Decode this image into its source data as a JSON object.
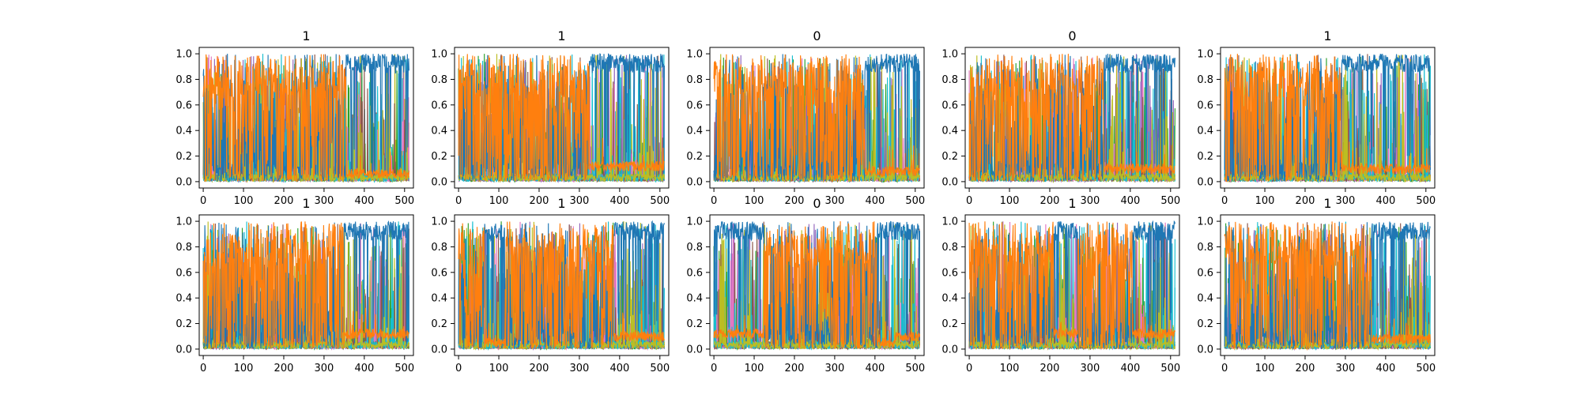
{
  "colors": {
    "primary": "#1f77b4",
    "secondary": "#ff7f0e",
    "accents": [
      "#17becf",
      "#bcbd22",
      "#2ca02c",
      "#9467bd",
      "#e377c2",
      "#8c564b"
    ]
  },
  "chart_data": [
    {
      "type": "line",
      "title": "1",
      "xlim": [
        -10,
        522
      ],
      "ylim": [
        -0.05,
        1.05
      ],
      "xticks": [
        0,
        100,
        200,
        300,
        400,
        500
      ],
      "yticks": [
        0.0,
        0.2,
        0.4,
        0.6,
        0.8,
        1.0
      ],
      "grid": false,
      "series_count": 10,
      "regime_segments": [
        {
          "x_start": 0,
          "x_end": 355,
          "dominant": "secondary",
          "low_level": 0.0
        },
        {
          "x_start": 355,
          "x_end": 511,
          "dominant": "primary",
          "low_level": 0.06
        }
      ]
    },
    {
      "type": "line",
      "title": "1",
      "xlim": [
        -10,
        522
      ],
      "ylim": [
        -0.05,
        1.05
      ],
      "xticks": [
        0,
        100,
        200,
        300,
        400,
        500
      ],
      "yticks": [
        0.0,
        0.2,
        0.4,
        0.6,
        0.8,
        1.0
      ],
      "grid": false,
      "series_count": 10,
      "regime_segments": [
        {
          "x_start": 0,
          "x_end": 325,
          "dominant": "secondary",
          "low_level": 0.0
        },
        {
          "x_start": 325,
          "x_end": 511,
          "dominant": "primary",
          "low_level": 0.12
        }
      ]
    },
    {
      "type": "line",
      "title": "0",
      "xlim": [
        -10,
        522
      ],
      "ylim": [
        -0.05,
        1.05
      ],
      "xticks": [
        0,
        100,
        200,
        300,
        400,
        500
      ],
      "yticks": [
        0.0,
        0.2,
        0.4,
        0.6,
        0.8,
        1.0
      ],
      "grid": false,
      "series_count": 10,
      "regime_segments": [
        {
          "x_start": 0,
          "x_end": 375,
          "dominant": "secondary",
          "low_level": 0.0
        },
        {
          "x_start": 375,
          "x_end": 511,
          "dominant": "primary",
          "low_level": 0.08
        }
      ]
    },
    {
      "type": "line",
      "title": "0",
      "xlim": [
        -10,
        522
      ],
      "ylim": [
        -0.05,
        1.05
      ],
      "xticks": [
        0,
        100,
        200,
        300,
        400,
        500
      ],
      "yticks": [
        0.0,
        0.2,
        0.4,
        0.6,
        0.8,
        1.0
      ],
      "grid": false,
      "series_count": 10,
      "regime_segments": [
        {
          "x_start": 0,
          "x_end": 335,
          "dominant": "secondary",
          "low_level": 0.0
        },
        {
          "x_start": 335,
          "x_end": 511,
          "dominant": "primary",
          "low_level": 0.1
        }
      ]
    },
    {
      "type": "line",
      "title": "1",
      "xlim": [
        -10,
        522
      ],
      "ylim": [
        -0.05,
        1.05
      ],
      "xticks": [
        0,
        100,
        200,
        300,
        400,
        500
      ],
      "yticks": [
        0.0,
        0.2,
        0.4,
        0.6,
        0.8,
        1.0
      ],
      "grid": false,
      "series_count": 10,
      "regime_segments": [
        {
          "x_start": 0,
          "x_end": 290,
          "dominant": "secondary",
          "low_level": 0.0
        },
        {
          "x_start": 290,
          "x_end": 511,
          "dominant": "primary",
          "low_level": 0.1
        }
      ]
    },
    {
      "type": "line",
      "title": "1",
      "xlim": [
        -10,
        522
      ],
      "ylim": [
        -0.05,
        1.05
      ],
      "xticks": [
        0,
        100,
        200,
        300,
        400,
        500
      ],
      "yticks": [
        0.0,
        0.2,
        0.4,
        0.6,
        0.8,
        1.0
      ],
      "grid": false,
      "series_count": 10,
      "regime_segments": [
        {
          "x_start": 0,
          "x_end": 350,
          "dominant": "secondary",
          "low_level": 0.0
        },
        {
          "x_start": 350,
          "x_end": 511,
          "dominant": "primary",
          "low_level": 0.12
        }
      ]
    },
    {
      "type": "line",
      "title": "1",
      "xlim": [
        -10,
        522
      ],
      "ylim": [
        -0.05,
        1.05
      ],
      "xticks": [
        0,
        100,
        200,
        300,
        400,
        500
      ],
      "yticks": [
        0.0,
        0.2,
        0.4,
        0.6,
        0.8,
        1.0
      ],
      "grid": false,
      "series_count": 10,
      "regime_segments": [
        {
          "x_start": 0,
          "x_end": 65,
          "dominant": "secondary",
          "low_level": 0.0
        },
        {
          "x_start": 65,
          "x_end": 115,
          "dominant": "primary",
          "low_level": 0.05
        },
        {
          "x_start": 115,
          "x_end": 385,
          "dominant": "secondary",
          "low_level": 0.0
        },
        {
          "x_start": 385,
          "x_end": 511,
          "dominant": "primary",
          "low_level": 0.1
        }
      ]
    },
    {
      "type": "line",
      "title": "0",
      "xlim": [
        -10,
        522
      ],
      "ylim": [
        -0.05,
        1.05
      ],
      "xticks": [
        0,
        100,
        200,
        300,
        400,
        500
      ],
      "yticks": [
        0.0,
        0.2,
        0.4,
        0.6,
        0.8,
        1.0
      ],
      "grid": false,
      "series_count": 10,
      "regime_segments": [
        {
          "x_start": 0,
          "x_end": 125,
          "dominant": "primary",
          "low_level": 0.12
        },
        {
          "x_start": 125,
          "x_end": 405,
          "dominant": "secondary",
          "low_level": 0.0
        },
        {
          "x_start": 405,
          "x_end": 450,
          "dominant": "primary",
          "low_level": 0.05
        },
        {
          "x_start": 450,
          "x_end": 511,
          "dominant": "primary",
          "low_level": 0.1
        }
      ]
    },
    {
      "type": "line",
      "title": "1",
      "xlim": [
        -10,
        522
      ],
      "ylim": [
        -0.05,
        1.05
      ],
      "xticks": [
        0,
        100,
        200,
        300,
        400,
        500
      ],
      "yticks": [
        0.0,
        0.2,
        0.4,
        0.6,
        0.8,
        1.0
      ],
      "grid": false,
      "series_count": 10,
      "regime_segments": [
        {
          "x_start": 0,
          "x_end": 210,
          "dominant": "secondary",
          "low_level": 0.0
        },
        {
          "x_start": 210,
          "x_end": 270,
          "dominant": "primary",
          "low_level": 0.12
        },
        {
          "x_start": 270,
          "x_end": 405,
          "dominant": "secondary",
          "low_level": 0.0
        },
        {
          "x_start": 405,
          "x_end": 511,
          "dominant": "primary",
          "low_level": 0.12
        }
      ]
    },
    {
      "type": "line",
      "title": "1",
      "xlim": [
        -10,
        522
      ],
      "ylim": [
        -0.05,
        1.05
      ],
      "xticks": [
        0,
        100,
        200,
        300,
        400,
        500
      ],
      "yticks": [
        0.0,
        0.2,
        0.4,
        0.6,
        0.8,
        1.0
      ],
      "grid": false,
      "series_count": 10,
      "regime_segments": [
        {
          "x_start": 0,
          "x_end": 365,
          "dominant": "secondary",
          "low_level": 0.0
        },
        {
          "x_start": 365,
          "x_end": 511,
          "dominant": "primary",
          "low_level": 0.08
        }
      ]
    }
  ]
}
